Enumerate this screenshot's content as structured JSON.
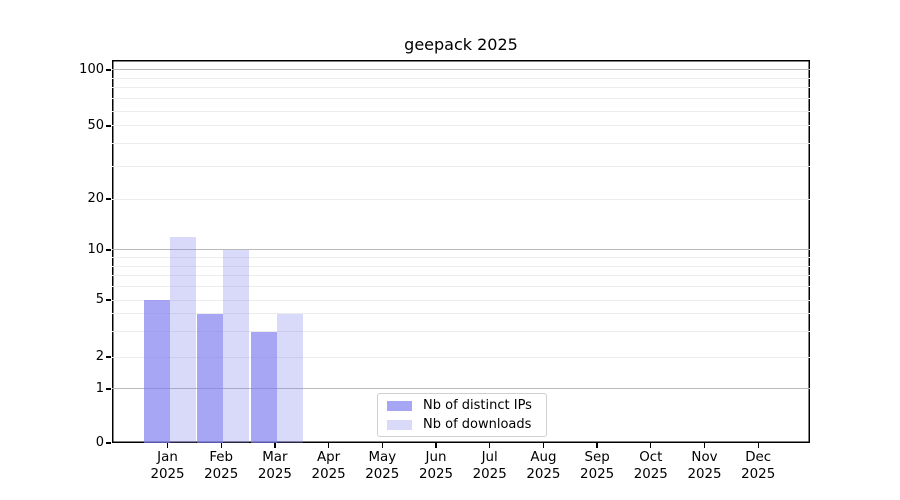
{
  "chart_data": {
    "type": "bar",
    "title": "geepack 2025",
    "x_axis": {
      "months": [
        "Jan",
        "Feb",
        "Mar",
        "Apr",
        "May",
        "Jun",
        "Jul",
        "Aug",
        "Sep",
        "Oct",
        "Nov",
        "Dec"
      ],
      "year": "2025"
    },
    "y_axis": {
      "ticks": [
        100,
        50,
        20,
        10,
        5,
        2,
        1,
        0
      ],
      "scale": "log-like (linear 0-1, log above)",
      "range": [
        0,
        100
      ],
      "minor_gridline_values": [
        2,
        3,
        4,
        5,
        6,
        7,
        8,
        9,
        20,
        30,
        40,
        50,
        60,
        70,
        80,
        90
      ],
      "major_gridline_values": [
        1,
        10,
        100
      ]
    },
    "series": [
      {
        "name": "Nb of distinct IPs",
        "color": "rgba(128,128,240,0.7)",
        "solid_color": "#a9a9f4",
        "values": [
          5,
          4,
          3,
          0,
          0,
          0,
          0,
          0,
          0,
          0,
          0,
          0
        ]
      },
      {
        "name": "Nb of downloads",
        "color": "rgba(128,128,240,0.3)",
        "solid_color": "#d8d8f8",
        "values": [
          12,
          10,
          4,
          0,
          0,
          0,
          0,
          0,
          0,
          0,
          0,
          0
        ]
      }
    ],
    "legend": {
      "position": "lower center",
      "entries": [
        "Nb of distinct IPs",
        "Nb of downloads"
      ]
    },
    "grid": true
  },
  "colors": {
    "background": "#ffffff",
    "axis": "#000000",
    "grid_major": "#b9b9b9",
    "grid_minor": "#ececec",
    "legend_border": "#d0d0d0"
  }
}
